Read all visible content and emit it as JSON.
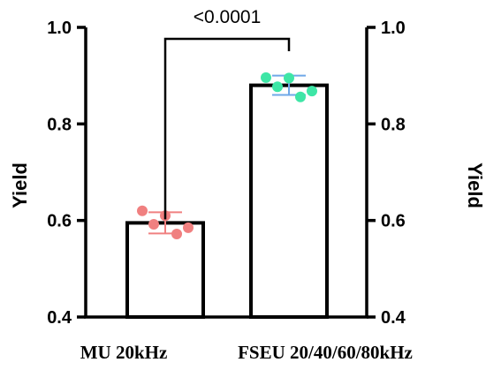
{
  "chart_data": {
    "type": "bar",
    "categories": [
      "MU 20kHz",
      "FSEU 20/40/60/80kHz"
    ],
    "values": [
      0.595,
      0.88
    ],
    "error_bars": [
      0.022,
      0.02
    ],
    "points": [
      [
        0.62,
        0.61,
        0.585,
        0.592,
        0.572
      ],
      [
        0.896,
        0.895,
        0.868,
        0.877,
        0.856
      ]
    ],
    "point_colors": [
      "#f08080",
      "#3ee6a6"
    ],
    "error_colors": [
      "#f08080",
      "#6fa8e8"
    ],
    "ylim": [
      0.4,
      1.0
    ],
    "yticks": [
      "0.4",
      "0.6",
      "0.8",
      "1.0"
    ],
    "ylabel": "Yield",
    "ylabel_right": "Yield",
    "significance": {
      "label": "<0.0001",
      "from": 0,
      "to": 1
    },
    "grid": false
  }
}
